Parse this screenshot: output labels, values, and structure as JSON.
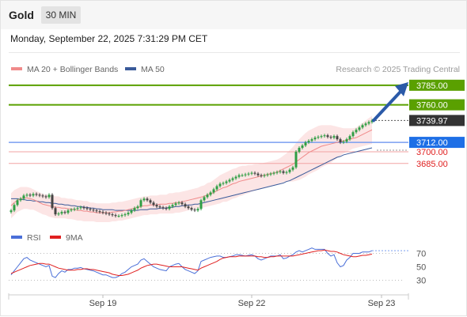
{
  "header": {
    "symbol": "Gold",
    "timeframe": "30 MIN",
    "datetime": "Monday, September 22, 2025 7:31:29 PM CET"
  },
  "chart_data": [
    {
      "type": "candlestick",
      "legend": [
        {
          "label": "MA 20 + Bollinger Bands",
          "color": "#f08a8a"
        },
        {
          "label": "MA 50",
          "color": "#3a5a9a"
        }
      ],
      "credit": "Research © 2025 Trading Central",
      "ylim": [
        3608,
        3800
      ],
      "levels": [
        {
          "value": 3785.0,
          "label": "3785.00",
          "kind": "resistance",
          "color": "#5aa000"
        },
        {
          "value": 3760.0,
          "label": "3760.00",
          "kind": "resistance",
          "color": "#5aa000"
        },
        {
          "value": 3739.97,
          "label": "3739.97",
          "kind": "last",
          "color": "#333333"
        },
        {
          "value": 3712.0,
          "label": "3712.00",
          "kind": "pivot",
          "color": "#1e6fe6"
        },
        {
          "value": 3700.0,
          "label": "3700.00",
          "kind": "support",
          "color": "#e02020"
        },
        {
          "value": 3685.0,
          "label": "3685.00",
          "kind": "support",
          "color": "#e02020"
        }
      ],
      "x_ticks": [
        {
          "label": "Sep 19",
          "index": 29
        },
        {
          "label": "Sep 22",
          "index": 76
        },
        {
          "label": "Sep 23",
          "index": 117
        }
      ],
      "forecast_target": 3785.0,
      "closes": [
        3625,
        3632,
        3638,
        3640,
        3644,
        3645,
        3644,
        3646,
        3645,
        3644,
        3643,
        3642,
        3645,
        3628,
        3620,
        3621,
        3623,
        3622,
        3625,
        3626,
        3627,
        3628,
        3629,
        3628,
        3627,
        3626,
        3625,
        3624,
        3623,
        3622,
        3621,
        3620,
        3619,
        3618,
        3618,
        3619,
        3620,
        3622,
        3625,
        3628,
        3630,
        3638,
        3640,
        3638,
        3635,
        3632,
        3630,
        3629,
        3628,
        3627,
        3630,
        3632,
        3634,
        3635,
        3633,
        3630,
        3628,
        3626,
        3625,
        3627,
        3638,
        3642,
        3645,
        3648,
        3652,
        3656,
        3659,
        3660,
        3662,
        3664,
        3666,
        3668,
        3670,
        3670,
        3671,
        3672,
        3673,
        3672,
        3670,
        3669,
        3670,
        3671,
        3672,
        3673,
        3674,
        3675,
        3673,
        3674,
        3677,
        3680,
        3700,
        3705,
        3708,
        3712,
        3714,
        3716,
        3718,
        3719,
        3720,
        3721,
        3719,
        3718,
        3720,
        3716,
        3712,
        3713,
        3716,
        3720,
        3725,
        3728,
        3731,
        3734,
        3736,
        3738,
        3740
      ],
      "ma20": [
        3631,
        3635,
        3638,
        3640,
        3641,
        3641,
        3640,
        3639,
        3637,
        3635,
        3633,
        3632,
        3631,
        3630,
        3629,
        3629,
        3628,
        3628,
        3627,
        3627,
        3626,
        3625,
        3625,
        3624,
        3624,
        3623,
        3623,
        3622,
        3622,
        3622,
        3622,
        3622,
        3623,
        3623,
        3624,
        3624,
        3625,
        3626,
        3627,
        3628,
        3629,
        3630,
        3631,
        3631,
        3632,
        3632,
        3632,
        3633,
        3633,
        3633,
        3634,
        3634,
        3635,
        3635,
        3636,
        3637,
        3638,
        3639,
        3640,
        3641,
        3642,
        3643,
        3645,
        3646,
        3648,
        3650,
        3652,
        3654,
        3655,
        3657,
        3659,
        3660,
        3662,
        3663,
        3664,
        3665,
        3666,
        3667,
        3668,
        3669,
        3670,
        3671,
        3672,
        3673,
        3674,
        3676,
        3678,
        3680,
        3682,
        3684,
        3687,
        3690,
        3693,
        3696,
        3699,
        3701,
        3703,
        3705,
        3707,
        3708,
        3709,
        3710,
        3711,
        3712,
        3713,
        3714,
        3715,
        3716,
        3717,
        3718,
        3720,
        3722,
        3724,
        3726,
        3728
      ],
      "ma50": [
        3640,
        3640,
        3640,
        3639,
        3639,
        3638,
        3638,
        3637,
        3637,
        3636,
        3636,
        3635,
        3635,
        3634,
        3634,
        3633,
        3633,
        3632,
        3632,
        3631,
        3631,
        3630,
        3630,
        3629,
        3629,
        3628,
        3628,
        3627,
        3627,
        3626,
        3626,
        3626,
        3626,
        3625,
        3625,
        3625,
        3625,
        3625,
        3625,
        3625,
        3625,
        3626,
        3626,
        3626,
        3627,
        3627,
        3627,
        3628,
        3628,
        3628,
        3629,
        3629,
        3630,
        3630,
        3631,
        3631,
        3632,
        3632,
        3633,
        3633,
        3634,
        3635,
        3636,
        3637,
        3638,
        3639,
        3640,
        3641,
        3642,
        3643,
        3644,
        3645,
        3646,
        3647,
        3648,
        3649,
        3650,
        3651,
        3652,
        3653,
        3654,
        3655,
        3656,
        3657,
        3658,
        3659,
        3660,
        3662,
        3663,
        3665,
        3667,
        3669,
        3671,
        3673,
        3675,
        3677,
        3679,
        3681,
        3683,
        3685,
        3687,
        3689,
        3691,
        3693,
        3694,
        3696,
        3697,
        3698,
        3699,
        3700,
        3701,
        3702,
        3703,
        3704,
        3705
      ],
      "bb_width": [
        16,
        16,
        15,
        15,
        14,
        14,
        14,
        13,
        13,
        13,
        13,
        13,
        14,
        14,
        14,
        14,
        13,
        13,
        13,
        13,
        13,
        13,
        13,
        13,
        13,
        12,
        12,
        12,
        12,
        12,
        12,
        12,
        12,
        12,
        12,
        12,
        12,
        12,
        12,
        12,
        12,
        12,
        12,
        12,
        12,
        12,
        12,
        12,
        12,
        12,
        13,
        13,
        13,
        13,
        13,
        13,
        13,
        13,
        13,
        13,
        14,
        14,
        15,
        15,
        16,
        17,
        18,
        18,
        19,
        19,
        19,
        19,
        19,
        19,
        18,
        18,
        17,
        17,
        16,
        16,
        16,
        16,
        16,
        16,
        16,
        16,
        17,
        18,
        20,
        22,
        24,
        26,
        27,
        28,
        28,
        28,
        28,
        28,
        27,
        26,
        25,
        24,
        22,
        20,
        18,
        16,
        15,
        14,
        13,
        13,
        14,
        15,
        16,
        17,
        18
      ]
    },
    {
      "type": "line",
      "legend": [
        {
          "label": "RSI",
          "color": "#4a6fd8"
        },
        {
          "label": "9MA",
          "color": "#e02020"
        }
      ],
      "ylim": [
        20,
        80
      ],
      "y_ticks": [
        {
          "value": 70,
          "label": "70"
        },
        {
          "value": 50,
          "label": "50"
        },
        {
          "value": 30,
          "label": "30"
        }
      ],
      "rsi": [
        38,
        44,
        50,
        56,
        62,
        64,
        60,
        58,
        56,
        54,
        52,
        50,
        52,
        36,
        34,
        40,
        44,
        42,
        46,
        46,
        48,
        48,
        49,
        47,
        46,
        45,
        44,
        42,
        40,
        38,
        38,
        36,
        34,
        34,
        36,
        40,
        42,
        46,
        50,
        52,
        54,
        60,
        62,
        58,
        54,
        50,
        48,
        46,
        45,
        44,
        50,
        52,
        54,
        55,
        50,
        46,
        44,
        42,
        40,
        44,
        58,
        60,
        62,
        64,
        65,
        66,
        66,
        64,
        64,
        65,
        66,
        68,
        68,
        67,
        66,
        67,
        68,
        66,
        62,
        60,
        62,
        64,
        66,
        66,
        66,
        68,
        62,
        63,
        66,
        68,
        72,
        74,
        72,
        74,
        76,
        78,
        76,
        76,
        76,
        76,
        70,
        66,
        68,
        56,
        50,
        52,
        60,
        64,
        70,
        70,
        70,
        72,
        72,
        72,
        74
      ],
      "ma9": [
        40,
        42,
        44,
        46,
        48,
        50,
        52,
        53,
        54,
        55,
        55,
        54,
        54,
        52,
        50,
        48,
        47,
        46,
        45,
        45,
        45,
        46,
        46,
        47,
        47,
        46,
        46,
        45,
        44,
        43,
        42,
        41,
        39,
        38,
        37,
        37,
        38,
        39,
        41,
        43,
        45,
        48,
        50,
        52,
        53,
        54,
        54,
        53,
        52,
        51,
        50,
        50,
        50,
        50,
        50,
        49,
        48,
        47,
        46,
        45,
        48,
        50,
        52,
        54,
        56,
        58,
        61,
        63,
        64,
        65,
        65,
        65,
        66,
        66,
        66,
        66,
        66,
        66,
        65,
        65,
        64,
        64,
        65,
        65,
        66,
        66,
        66,
        66,
        66,
        66,
        67,
        68,
        69,
        70,
        71,
        72,
        73,
        74,
        74,
        75,
        74,
        73,
        73,
        72,
        70,
        68,
        67,
        66,
        65,
        65,
        66,
        67,
        67,
        68,
        69
      ]
    }
  ]
}
